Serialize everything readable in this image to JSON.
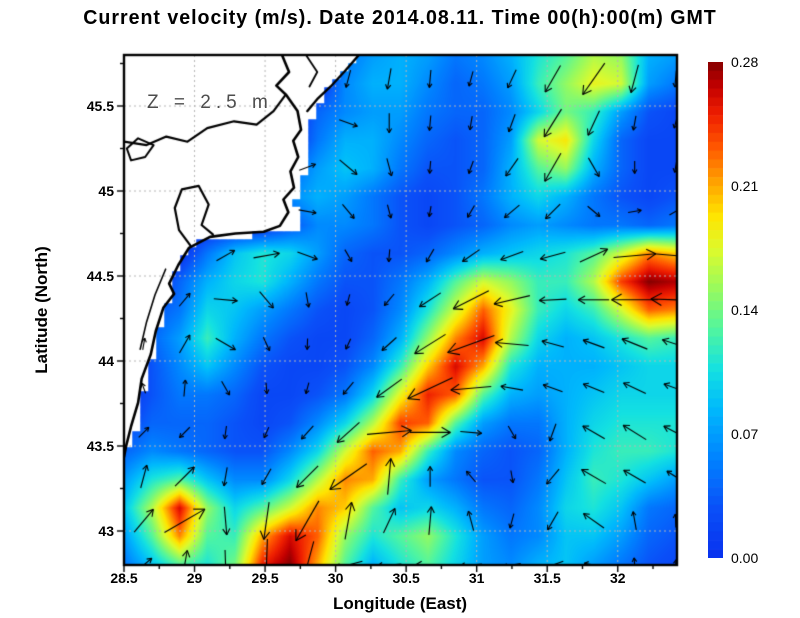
{
  "title": "Current velocity (m/s). Date 2014.08.11. Time 00(h):00(m) GMT",
  "annotation": "Z = 2.5 m",
  "axes": {
    "x_label": "Longitude (East)",
    "y_label": "Latitude (North)",
    "x_ticks": [
      {
        "value": 28.5,
        "label": "28.5"
      },
      {
        "value": 29,
        "label": "29"
      },
      {
        "value": 29.5,
        "label": "29.5"
      },
      {
        "value": 30,
        "label": "30"
      },
      {
        "value": 30.5,
        "label": "30.5"
      },
      {
        "value": 31,
        "label": "31"
      },
      {
        "value": 31.5,
        "label": "31.5"
      },
      {
        "value": 32,
        "label": "32"
      }
    ],
    "y_ticks": [
      {
        "value": 45.5,
        "label": "45.5"
      },
      {
        "value": 45,
        "label": "45"
      },
      {
        "value": 44.5,
        "label": "44.5"
      },
      {
        "value": 44,
        "label": "44"
      },
      {
        "value": 43.5,
        "label": "43.5"
      },
      {
        "value": 43,
        "label": "43"
      }
    ],
    "lon_range": [
      28.5,
      32.42
    ],
    "lat_range": [
      42.8,
      45.8
    ],
    "grid_color": "#b6b6b6",
    "frame_color": "#000000"
  },
  "colorbar": {
    "ticks": [
      {
        "value": 0.28,
        "label": "0.28"
      },
      {
        "value": 0.21,
        "label": "0.21"
      },
      {
        "value": 0.14,
        "label": "0.14"
      },
      {
        "value": 0.07,
        "label": "0.07"
      },
      {
        "value": 0.0,
        "label": "0.00"
      }
    ],
    "min": 0.0,
    "max": 0.28,
    "stops": [
      [
        0.0,
        "#0830EE"
      ],
      [
        0.1,
        "#0A50F8"
      ],
      [
        0.2,
        "#0082FF"
      ],
      [
        0.3,
        "#00B9FC"
      ],
      [
        0.38,
        "#14E1E1"
      ],
      [
        0.46,
        "#50F5A0"
      ],
      [
        0.54,
        "#96FA5F"
      ],
      [
        0.62,
        "#DCFA2D"
      ],
      [
        0.69,
        "#FFE400"
      ],
      [
        0.76,
        "#FFA000"
      ],
      [
        0.83,
        "#FF5500"
      ],
      [
        0.895,
        "#EE1E00"
      ],
      [
        0.95,
        "#C30000"
      ],
      [
        1.0,
        "#840000"
      ]
    ]
  },
  "chart_data": {
    "type": "heatmap",
    "title": "Current velocity (m/s). Date 2014.08.11. Time 00(h):00(m) GMT",
    "units": "m/s",
    "xlabel": "Longitude (East)",
    "ylabel": "Latitude (North)",
    "xlim": [
      28.5,
      32.42
    ],
    "ylim": [
      42.8,
      45.8
    ],
    "grid": true,
    "legend_position": "right-colorbar",
    "speed_grid": {
      "lon_start": 28.5,
      "lon_step": 0.196,
      "lat_start": 45.8,
      "lat_step": -0.16667,
      "values": [
        [
          0,
          0,
          0,
          0,
          0,
          0,
          0,
          0,
          0.05,
          0.07,
          0.08,
          0.07,
          0.05,
          0.06,
          0.08,
          0.11,
          0.13,
          0.16,
          0.15,
          0.08,
          0.07
        ],
        [
          0,
          0,
          0,
          0,
          0,
          0,
          0,
          0,
          0.06,
          0.08,
          0.08,
          0.06,
          0.04,
          0.05,
          0.07,
          0.12,
          0.15,
          0.18,
          0.17,
          0.07,
          0.05
        ],
        [
          0,
          0,
          0,
          0,
          0,
          0,
          0,
          0.04,
          0.06,
          0.07,
          0.07,
          0.05,
          0.04,
          0.04,
          0.06,
          0.1,
          0.14,
          0.12,
          0.07,
          0.03,
          0.02
        ],
        [
          0,
          0,
          0,
          0,
          0,
          0,
          0,
          0.05,
          0.08,
          0.08,
          0.06,
          0.04,
          0.03,
          0.04,
          0.07,
          0.17,
          0.19,
          0.1,
          0.04,
          0.02,
          0.02
        ],
        [
          0,
          0,
          0,
          0,
          0,
          0,
          0.04,
          0.07,
          0.09,
          0.08,
          0.05,
          0.03,
          0.03,
          0.04,
          0.08,
          0.13,
          0.15,
          0.08,
          0.04,
          0.02,
          0.02
        ],
        [
          0,
          0,
          0,
          0,
          0,
          0.03,
          0.06,
          0.08,
          0.07,
          0.05,
          0.03,
          0.02,
          0.03,
          0.05,
          0.08,
          0.1,
          0.08,
          0.05,
          0.03,
          0.02,
          0.03
        ],
        [
          0,
          0,
          0,
          0,
          0,
          0,
          0.03,
          0.06,
          0.06,
          0.05,
          0.03,
          0.02,
          0.03,
          0.04,
          0.06,
          0.07,
          0.06,
          0.05,
          0.05,
          0.04,
          0.05
        ],
        [
          0,
          0,
          0,
          0.05,
          0.09,
          0.11,
          0.1,
          0.07,
          0.04,
          0.03,
          0.03,
          0.04,
          0.06,
          0.08,
          0.09,
          0.1,
          0.11,
          0.13,
          0.17,
          0.22,
          0.2
        ],
        [
          0,
          0,
          0.04,
          0.08,
          0.1,
          0.11,
          0.08,
          0.05,
          0.03,
          0.03,
          0.05,
          0.08,
          0.13,
          0.17,
          0.15,
          0.12,
          0.12,
          0.16,
          0.24,
          0.28,
          0.27
        ],
        [
          0,
          0.03,
          0.05,
          0.1,
          0.09,
          0.07,
          0.05,
          0.03,
          0.02,
          0.03,
          0.06,
          0.11,
          0.17,
          0.23,
          0.18,
          0.12,
          0.1,
          0.12,
          0.17,
          0.23,
          0.22
        ],
        [
          0,
          0.04,
          0.07,
          0.12,
          0.08,
          0.05,
          0.03,
          0.02,
          0.02,
          0.04,
          0.08,
          0.15,
          0.22,
          0.26,
          0.16,
          0.1,
          0.08,
          0.09,
          0.11,
          0.13,
          0.12
        ],
        [
          0,
          0.03,
          0.06,
          0.09,
          0.06,
          0.03,
          0.02,
          0.02,
          0.03,
          0.06,
          0.12,
          0.2,
          0.26,
          0.21,
          0.11,
          0.08,
          0.08,
          0.08,
          0.09,
          0.1,
          0.1
        ],
        [
          0,
          0.03,
          0.05,
          0.05,
          0.04,
          0.02,
          0.02,
          0.03,
          0.05,
          0.1,
          0.18,
          0.25,
          0.23,
          0.13,
          0.08,
          0.07,
          0.08,
          0.09,
          0.1,
          0.1,
          0.1
        ],
        [
          0.02,
          0.04,
          0.04,
          0.04,
          0.03,
          0.02,
          0.03,
          0.06,
          0.1,
          0.16,
          0.24,
          0.23,
          0.13,
          0.07,
          0.05,
          0.05,
          0.08,
          0.1,
          0.11,
          0.11,
          0.11
        ],
        [
          0.04,
          0.06,
          0.05,
          0.04,
          0.03,
          0.03,
          0.06,
          0.1,
          0.17,
          0.23,
          0.21,
          0.12,
          0.06,
          0.04,
          0.03,
          0.04,
          0.08,
          0.11,
          0.12,
          0.12,
          0.11
        ],
        [
          0.07,
          0.11,
          0.13,
          0.09,
          0.06,
          0.06,
          0.1,
          0.16,
          0.22,
          0.21,
          0.12,
          0.07,
          0.05,
          0.03,
          0.03,
          0.05,
          0.09,
          0.12,
          0.11,
          0.09,
          0.07
        ],
        [
          0.09,
          0.16,
          0.26,
          0.15,
          0.1,
          0.13,
          0.17,
          0.22,
          0.2,
          0.13,
          0.09,
          0.1,
          0.08,
          0.05,
          0.04,
          0.06,
          0.1,
          0.11,
          0.09,
          0.05,
          0.04
        ],
        [
          0.07,
          0.13,
          0.22,
          0.13,
          0.12,
          0.21,
          0.26,
          0.23,
          0.15,
          0.11,
          0.13,
          0.15,
          0.11,
          0.07,
          0.05,
          0.06,
          0.09,
          0.09,
          0.07,
          0.04,
          0.03
        ],
        [
          0.05,
          0.09,
          0.13,
          0.11,
          0.14,
          0.25,
          0.28,
          0.21,
          0.13,
          0.08,
          0.11,
          0.13,
          0.1,
          0.07,
          0.06,
          0.08,
          0.09,
          0.07,
          0.05,
          0.03,
          0.02
        ]
      ]
    },
    "quiver": {
      "cols_lon": [
        28.64,
        28.93,
        29.22,
        29.51,
        29.8,
        30.09,
        30.38,
        30.67,
        30.96,
        31.25,
        31.54,
        31.83,
        32.12,
        32.41
      ],
      "rows_lat": [
        45.66,
        45.4,
        45.14,
        44.88,
        44.62,
        44.36,
        44.1,
        43.84,
        43.58,
        43.32,
        43.06,
        42.8
      ],
      "angles_deg": [
        [
          null,
          null,
          null,
          null,
          null,
          255,
          260,
          265,
          255,
          245,
          240,
          235,
          255,
          265
        ],
        [
          null,
          null,
          null,
          null,
          null,
          340,
          270,
          265,
          260,
          250,
          238,
          245,
          260,
          255
        ],
        [
          null,
          null,
          null,
          null,
          20,
          320,
          285,
          265,
          250,
          235,
          240,
          300,
          270,
          260
        ],
        [
          null,
          null,
          null,
          null,
          350,
          310,
          285,
          260,
          240,
          220,
          225,
          320,
          10,
          30
        ],
        [
          null,
          null,
          30,
          10,
          340,
          300,
          265,
          240,
          215,
          200,
          195,
          25,
          5,
          355
        ],
        [
          null,
          50,
          355,
          310,
          280,
          255,
          230,
          213,
          207,
          193,
          183,
          180,
          180,
          178
        ],
        [
          80,
          60,
          330,
          295,
          268,
          245,
          222,
          212,
          200,
          175,
          165,
          160,
          158,
          162
        ],
        [
          110,
          85,
          300,
          275,
          255,
          230,
          216,
          205,
          185,
          170,
          160,
          158,
          155,
          160
        ],
        [
          45,
          225,
          262,
          246,
          228,
          222,
          5,
          0,
          355,
          300,
          250,
          150,
          148,
          152
        ],
        [
          75,
          45,
          260,
          240,
          225,
          215,
          85,
          90,
          130,
          280,
          230,
          150,
          150,
          148
        ],
        [
          50,
          30,
          275,
          262,
          240,
          80,
          65,
          85,
          105,
          255,
          240,
          145,
          100,
          92
        ],
        [
          40,
          80,
          272,
          268,
          255,
          195,
          185,
          180,
          185,
          190,
          200,
          170,
          95,
          85
        ]
      ]
    },
    "land_polygon": [
      [
        28.5,
        45.8
      ],
      [
        30.17,
        45.8
      ],
      [
        30.04,
        45.68
      ],
      [
        29.95,
        45.6
      ],
      [
        29.87,
        45.52
      ],
      [
        29.83,
        45.42
      ],
      [
        29.81,
        45.3
      ],
      [
        29.79,
        45.14
      ],
      [
        29.76,
        45.03
      ],
      [
        29.7,
        44.95
      ],
      [
        29.73,
        44.87
      ],
      [
        29.77,
        44.79
      ],
      [
        29.5,
        44.745
      ],
      [
        29.28,
        44.735
      ],
      [
        29.04,
        44.7
      ],
      [
        28.92,
        44.61
      ],
      [
        28.86,
        44.49
      ],
      [
        28.82,
        44.36
      ],
      [
        28.77,
        44.22
      ],
      [
        28.72,
        44.09
      ],
      [
        28.68,
        43.94
      ],
      [
        28.64,
        43.81
      ],
      [
        28.61,
        43.67
      ],
      [
        28.56,
        43.55
      ],
      [
        28.51,
        43.44
      ],
      [
        28.5,
        43.4
      ]
    ],
    "coastlines": [
      {
        "width": 2.6,
        "points": [
          [
            29.62,
            45.8
          ],
          [
            29.67,
            45.7
          ],
          [
            29.58,
            45.62
          ],
          [
            29.65,
            45.565
          ],
          [
            29.73,
            45.47
          ],
          [
            29.755,
            45.36
          ],
          [
            29.7,
            45.295
          ],
          [
            29.735,
            45.2
          ],
          [
            29.68,
            45.115
          ],
          [
            29.705,
            45.02
          ],
          [
            29.63,
            44.95
          ],
          [
            29.665,
            44.875
          ],
          [
            29.605,
            44.795
          ],
          [
            29.49,
            44.76
          ],
          [
            29.29,
            44.75
          ],
          [
            29.11,
            44.73
          ],
          [
            28.96,
            44.665
          ],
          [
            28.885,
            44.565
          ],
          [
            28.82,
            44.455
          ],
          [
            28.855,
            44.395
          ],
          [
            28.78,
            44.315
          ],
          [
            28.725,
            44.175
          ],
          [
            28.69,
            44.04
          ],
          [
            28.625,
            43.895
          ],
          [
            28.6,
            43.755
          ],
          [
            28.55,
            43.615
          ],
          [
            28.515,
            43.5
          ],
          [
            28.5,
            43.435
          ]
        ]
      },
      {
        "width": 2.2,
        "points": [
          [
            28.5,
            45.29
          ],
          [
            28.66,
            45.27
          ],
          [
            28.8,
            45.32
          ],
          [
            28.95,
            45.29
          ],
          [
            29.09,
            45.37
          ],
          [
            29.28,
            45.41
          ],
          [
            29.44,
            45.39
          ],
          [
            29.56,
            45.47
          ],
          [
            29.64,
            45.56
          ]
        ]
      },
      {
        "width": 2.2,
        "points": [
          [
            28.97,
            44.68
          ],
          [
            28.89,
            44.77
          ],
          [
            28.86,
            44.9
          ],
          [
            28.91,
            45.01
          ],
          [
            29.03,
            45.03
          ],
          [
            29.1,
            44.92
          ],
          [
            29.05,
            44.8
          ],
          [
            29.13,
            44.745
          ]
        ]
      },
      {
        "width": 2.0,
        "points": [
          [
            28.52,
            45.25
          ],
          [
            28.6,
            45.31
          ],
          [
            28.71,
            45.27
          ],
          [
            28.65,
            45.2
          ],
          [
            28.55,
            45.18
          ],
          [
            28.52,
            45.25
          ]
        ]
      },
      {
        "width": 2.4,
        "points": [
          [
            30.165,
            45.8
          ],
          [
            30.06,
            45.7
          ],
          [
            29.965,
            45.615
          ],
          [
            29.875,
            45.545
          ],
          [
            29.8,
            45.47
          ]
        ]
      },
      {
        "width": 1.8,
        "points": [
          [
            29.79,
            45.8
          ],
          [
            29.87,
            45.7
          ],
          [
            29.815,
            45.615
          ]
        ]
      },
      {
        "width": 1.6,
        "points": [
          [
            28.795,
            44.54
          ],
          [
            28.72,
            44.39
          ],
          [
            28.66,
            44.23
          ],
          [
            28.615,
            44.07
          ]
        ]
      }
    ]
  }
}
